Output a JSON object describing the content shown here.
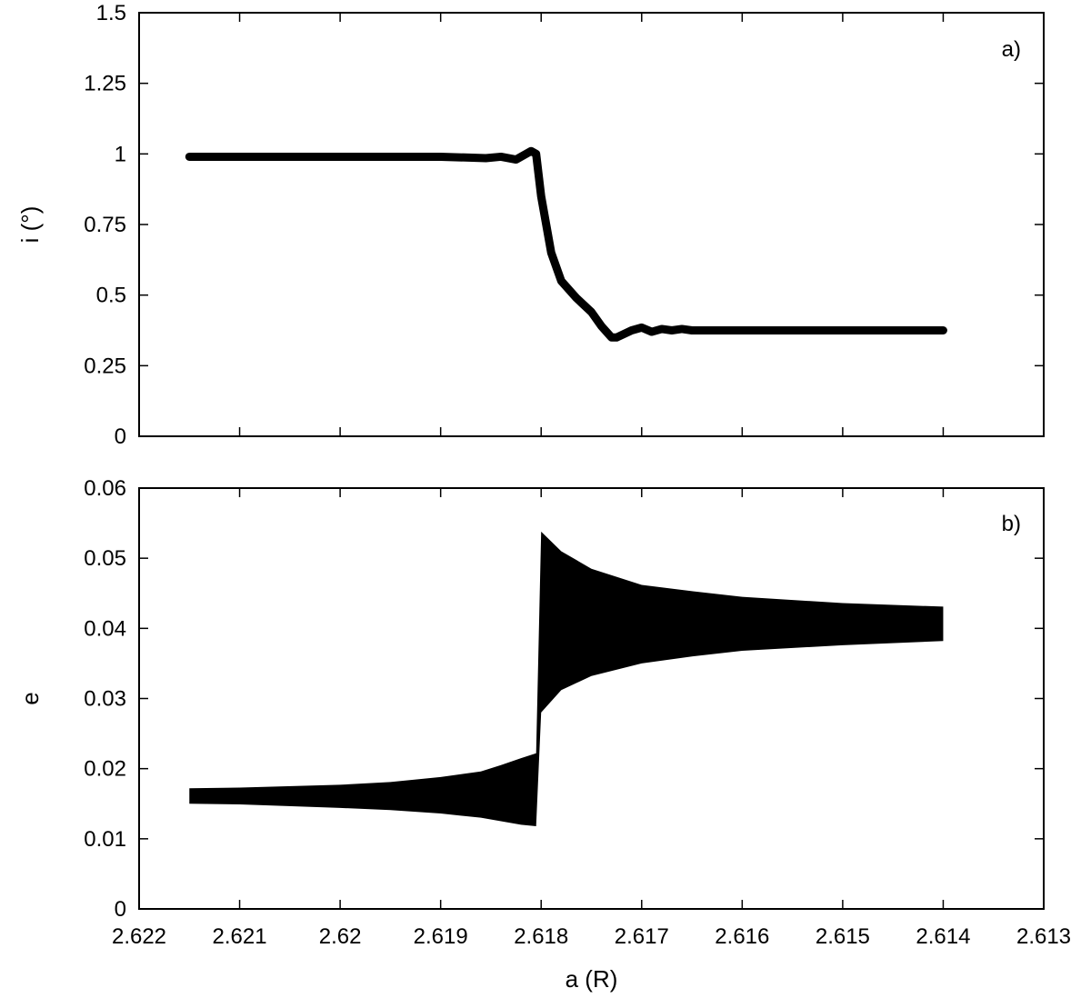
{
  "chart_data": [
    {
      "panel_label": "a)",
      "type": "line",
      "xlabel": "",
      "ylabel": "i (°)",
      "xlim": [
        2.622,
        2.613
      ],
      "ylim": [
        0,
        1.5
      ],
      "x_reversed": true,
      "xticks": [
        "2.622",
        "2.621",
        "2.62",
        "2.619",
        "2.618",
        "2.617",
        "2.616",
        "2.615",
        "2.614",
        "2.613"
      ],
      "yticks": [
        "0",
        "0.25",
        "0.5",
        "0.75",
        "1",
        "1.25",
        "1.5"
      ],
      "series": [
        {
          "x": [
            2.6215,
            2.62,
            2.619,
            2.61855,
            2.6184,
            2.61825,
            2.6181,
            2.61805,
            2.618,
            2.61795,
            2.6179,
            2.6178,
            2.61765,
            2.6175,
            2.6174,
            2.6173,
            2.61725,
            2.6171,
            2.617,
            2.6169,
            2.6168,
            2.6167,
            2.6166,
            2.6165,
            2.616,
            2.615,
            2.614
          ],
          "y": [
            0.99,
            0.99,
            0.99,
            0.985,
            0.99,
            0.98,
            1.01,
            1.0,
            0.85,
            0.75,
            0.65,
            0.55,
            0.49,
            0.44,
            0.39,
            0.35,
            0.35,
            0.375,
            0.385,
            0.37,
            0.38,
            0.375,
            0.38,
            0.375,
            0.375,
            0.375,
            0.375
          ]
        }
      ]
    },
    {
      "panel_label": "b)",
      "type": "area",
      "xlabel": "a (R)",
      "ylabel": "e",
      "xlim": [
        2.622,
        2.613
      ],
      "ylim": [
        0,
        0.06
      ],
      "x_reversed": true,
      "xticks": [
        "2.622",
        "2.621",
        "2.62",
        "2.619",
        "2.618",
        "2.617",
        "2.616",
        "2.615",
        "2.614",
        "2.613"
      ],
      "yticks": [
        "0",
        "0.01",
        "0.02",
        "0.03",
        "0.04",
        "0.05",
        "0.06"
      ],
      "series": [
        {
          "name": "",
          "x": [
            2.6215,
            2.621,
            2.62,
            2.6195,
            2.619,
            2.6186,
            2.6184,
            2.6182,
            2.61805,
            2.618,
            2.6178,
            2.6175,
            2.617,
            2.6165,
            2.616,
            2.615,
            2.614
          ],
          "upper": [
            0.0172,
            0.0173,
            0.0177,
            0.0181,
            0.0188,
            0.0196,
            0.0205,
            0.0215,
            0.0222,
            0.0538,
            0.051,
            0.0485,
            0.0462,
            0.0453,
            0.0445,
            0.0436,
            0.0431
          ],
          "lower": [
            0.015,
            0.0149,
            0.0144,
            0.0141,
            0.0136,
            0.013,
            0.0125,
            0.012,
            0.0118,
            0.028,
            0.0312,
            0.0332,
            0.035,
            0.036,
            0.0368,
            0.0376,
            0.0382
          ]
        }
      ]
    }
  ]
}
